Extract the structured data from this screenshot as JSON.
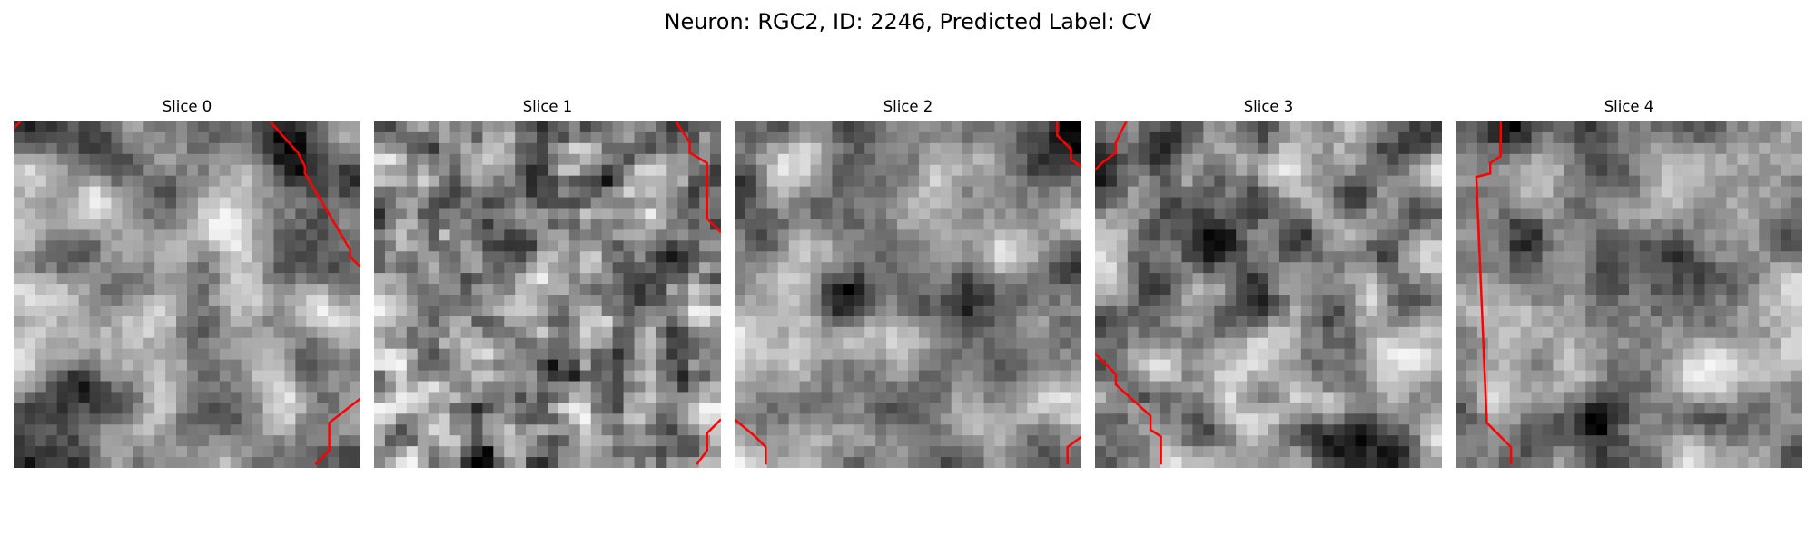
{
  "figure": {
    "title": "Neuron: RGC2, ID: 2246, Predicted Label: CV",
    "outline_color": "#ff0000",
    "colormap": "grayscale"
  },
  "slices": [
    {
      "title": "Slice 0",
      "seed": 11,
      "smooth": 3,
      "outlines": [
        [
          [
            0.0,
            0.02
          ],
          [
            0.02,
            0.0
          ]
        ],
        [
          [
            0.74,
            0.0
          ],
          [
            0.82,
            0.09
          ],
          [
            0.84,
            0.13
          ],
          [
            0.84,
            0.15
          ],
          [
            0.97,
            0.37
          ],
          [
            0.97,
            0.39
          ],
          [
            1.0,
            0.42
          ]
        ],
        [
          [
            1.0,
            0.8
          ],
          [
            0.91,
            0.87
          ],
          [
            0.91,
            0.95
          ],
          [
            0.87,
            0.99
          ]
        ]
      ],
      "gamma": 0.9
    },
    {
      "title": "Slice 1",
      "seed": 23,
      "smooth": 1,
      "outlines": [
        [
          [
            0.87,
            0.0
          ],
          [
            0.91,
            0.06
          ],
          [
            0.91,
            0.09
          ],
          [
            0.96,
            0.12
          ],
          [
            0.96,
            0.28
          ],
          [
            1.0,
            0.32
          ]
        ],
        [
          [
            1.0,
            0.86
          ],
          [
            0.96,
            0.9
          ],
          [
            0.96,
            0.95
          ],
          [
            0.93,
            0.99
          ]
        ]
      ],
      "gamma": 1.0
    },
    {
      "title": "Slice 2",
      "seed": 37,
      "smooth": 3,
      "outlines": [
        [
          [
            0.93,
            0.0
          ],
          [
            0.93,
            0.04
          ],
          [
            0.97,
            0.08
          ],
          [
            0.97,
            0.11
          ],
          [
            1.0,
            0.13
          ]
        ],
        [
          [
            0.0,
            0.86
          ],
          [
            0.06,
            0.91
          ],
          [
            0.09,
            0.94
          ],
          [
            0.09,
            0.99
          ]
        ],
        [
          [
            1.0,
            0.91
          ],
          [
            0.96,
            0.94
          ],
          [
            0.96,
            0.99
          ]
        ]
      ],
      "gamma": 0.85
    },
    {
      "title": "Slice 3",
      "seed": 51,
      "smooth": 2,
      "outlines": [
        [
          [
            0.09,
            0.0
          ],
          [
            0.06,
            0.06
          ],
          [
            0.06,
            0.09
          ],
          [
            0.02,
            0.12
          ],
          [
            0.0,
            0.14
          ]
        ],
        [
          [
            0.0,
            0.67
          ],
          [
            0.06,
            0.73
          ],
          [
            0.06,
            0.76
          ],
          [
            0.16,
            0.85
          ],
          [
            0.16,
            0.89
          ],
          [
            0.19,
            0.91
          ],
          [
            0.19,
            0.99
          ]
        ]
      ],
      "gamma": 1.0
    },
    {
      "title": "Slice 4",
      "seed": 67,
      "smooth": 3,
      "outlines": [
        [
          [
            0.13,
            0.0
          ],
          [
            0.13,
            0.1
          ],
          [
            0.1,
            0.12
          ],
          [
            0.1,
            0.15
          ],
          [
            0.06,
            0.16
          ],
          [
            0.09,
            0.87
          ],
          [
            0.16,
            0.94
          ],
          [
            0.16,
            0.99
          ]
        ]
      ],
      "gamma": 0.8
    }
  ]
}
